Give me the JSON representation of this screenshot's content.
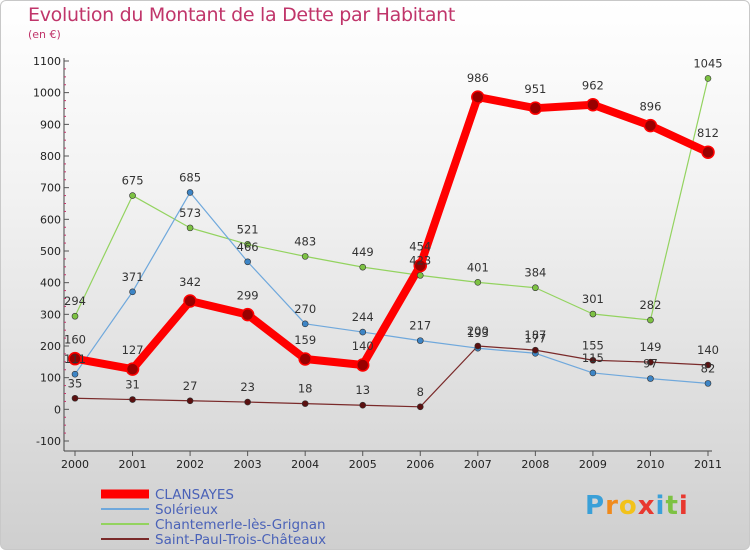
{
  "header": {
    "title": "Evolution du Montant de la Dette par Habitant",
    "unit": "(en €)"
  },
  "logo": {
    "text": "Proxiti"
  },
  "chart_data": {
    "type": "line",
    "title": "Evolution du Montant de la Dette par Habitant",
    "ylabel": "(en €)",
    "ylim": [
      -100,
      1100
    ],
    "yticks": [
      -100,
      0,
      100,
      200,
      300,
      400,
      500,
      600,
      700,
      800,
      900,
      1000,
      1100
    ],
    "x": [
      "2000",
      "2001",
      "2002",
      "2003",
      "2004",
      "2005",
      "2006",
      "2007",
      "2008",
      "2009",
      "2010",
      "2011"
    ],
    "grid": false,
    "legend_position": "bottom-left",
    "series": [
      {
        "name": "CLANSAYES",
        "color": "#ff0000",
        "marker": "#990000",
        "values": [
          160,
          127,
          342,
          299,
          159,
          140,
          454,
          986,
          951,
          962,
          896,
          812
        ],
        "labels": [
          "160",
          "127",
          "342",
          "299",
          "159",
          "140",
          "454",
          "986",
          "951",
          "962",
          "896",
          "812"
        ]
      },
      {
        "name": "Solérieux",
        "color": "#6fa8dc",
        "marker": "#3d85c6",
        "values": [
          111,
          371,
          685,
          466,
          270,
          244,
          217,
          193,
          177,
          115,
          97,
          82
        ],
        "labels": [
          "111",
          "371",
          "685",
          "466",
          "270",
          "244",
          "217",
          "193",
          "177",
          "115",
          "97",
          "82"
        ]
      },
      {
        "name": "Chantemerle-lès-Grignan",
        "color": "#93d35f",
        "marker": "#7dc243",
        "values": [
          294,
          675,
          573,
          521,
          483,
          449,
          423,
          401,
          384,
          301,
          282,
          1045
        ],
        "labels": [
          "294",
          "675",
          "573",
          "521",
          "483",
          "449",
          "423",
          "401",
          "384",
          "301",
          "282",
          "1045"
        ]
      },
      {
        "name": "Saint-Paul-Trois-Châteaux",
        "color": "#7a2a2a",
        "marker": "#5b1010",
        "values": [
          35,
          31,
          27,
          23,
          18,
          13,
          8,
          200,
          187,
          155,
          149,
          140
        ],
        "labels": [
          "35",
          "31",
          "27",
          "23",
          "18",
          "13",
          "8",
          "200",
          "187",
          "155",
          "149",
          "140"
        ]
      }
    ]
  }
}
